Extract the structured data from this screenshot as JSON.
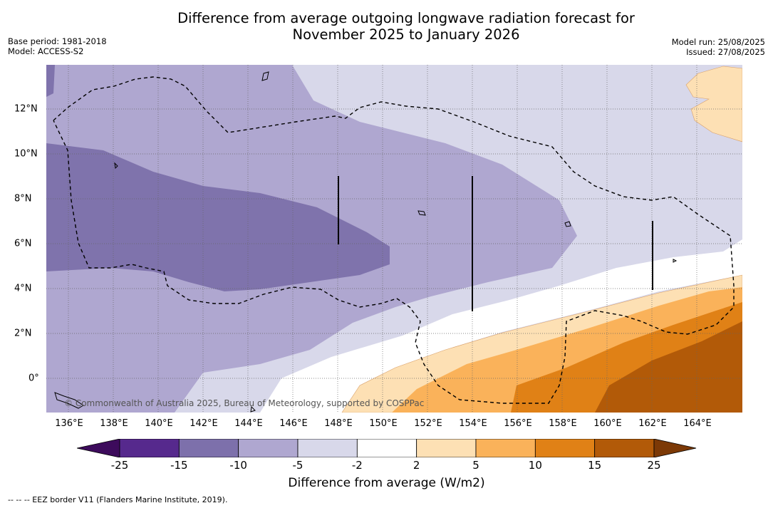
{
  "title_line1": "Difference from average outgoing longwave radiation forecast for",
  "title_line2": "November 2025 to January 2026",
  "base_period": "Base period: 1981-2018",
  "model": "Model: ACCESS-S2",
  "model_run": "Model run: 25/08/2025",
  "issued": "Issued: 27/08/2025",
  "copyright": "© Commonwealth of Australia 2025, Bureau of Meteorology, supported by COSPPac",
  "lon_labels": [
    "136°E",
    "138°E",
    "140°E",
    "142°E",
    "144°E",
    "146°E",
    "148°E",
    "150°E",
    "152°E",
    "154°E",
    "156°E",
    "158°E",
    "160°E",
    "162°E",
    "164°E"
  ],
  "lat_labels": [
    "12°N",
    "10°N",
    "8°N",
    "6°N",
    "4°N",
    "2°N",
    "0°"
  ],
  "colorbar": {
    "ticks": [
      "-25",
      "-15",
      "-10",
      "-5",
      "-2",
      "2",
      "5",
      "10",
      "15",
      "25"
    ],
    "colors": [
      "#56298d",
      "#7d70ab",
      "#afa7d0",
      "#d8d8ea",
      "#ffffff",
      "#fde0b4",
      "#fab25a",
      "#e08116",
      "#b25a08"
    ],
    "low_extend_color": "#3d0b5c",
    "high_extend_color": "#7c3906",
    "label": "Difference from average (W/m2)"
  },
  "footer": "--  --  -- EEZ border V11 (Flanders Marine Institute, 2019)."
}
